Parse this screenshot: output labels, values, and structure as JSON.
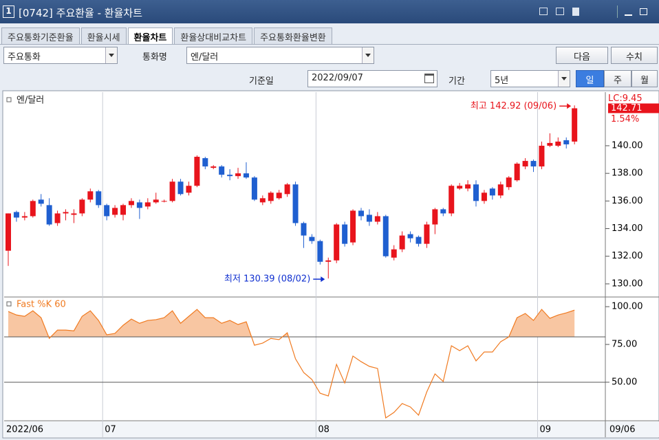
{
  "window": {
    "number": "1",
    "title": "[0742] 주요환율 - 환율차트"
  },
  "tabs": {
    "items": [
      "주요통화기준환율",
      "환율시세",
      "환율차트",
      "환율상대비교차트",
      "주요통화환율변환"
    ],
    "active": 2
  },
  "controls": {
    "currency_group": "주요통화",
    "currency_label": "통화명",
    "currency": "엔/달러",
    "next_button": "다음",
    "values_button": "수치",
    "date_label": "기준일",
    "date": "2022/09/07",
    "period_label": "기간",
    "period": "5년",
    "period_buttons": [
      "일",
      "주",
      "월"
    ],
    "period_active": 0
  },
  "chart_data": [
    {
      "type": "candlestick",
      "name": "엔/달러",
      "up_color": "#e8141c",
      "down_color": "#1f5fd0",
      "open": [
        132.4,
        135.2,
        134.8,
        134.9,
        136.1,
        135.7,
        134.4,
        135.1,
        135.0,
        135.1,
        136.1,
        136.7,
        135.7,
        135.0,
        135.0,
        135.7,
        135.9,
        135.6,
        135.9,
        136.0,
        136.0,
        137.4,
        136.6,
        137.1,
        139.1,
        138.4,
        138.5,
        137.9,
        137.8,
        138.0,
        137.7,
        135.9,
        136.0,
        136.2,
        136.5,
        137.2,
        134.4,
        133.4,
        133.1,
        131.6,
        131.7,
        134.3,
        133.0,
        135.3,
        135.0,
        134.5,
        134.9,
        131.9,
        132.5,
        133.6,
        133.4,
        132.9,
        134.3,
        135.4,
        135.1,
        136.9,
        136.9,
        137.2,
        136.0,
        136.9,
        136.4,
        137.0,
        137.5,
        138.5,
        138.9,
        138.5,
        140.0,
        140.0,
        140.4,
        140.3
      ],
      "high": [
        135.1,
        135.3,
        135.2,
        136.1,
        136.5,
        136.2,
        135.3,
        135.4,
        135.4,
        136.2,
        136.9,
        136.8,
        135.8,
        135.7,
        135.8,
        136.2,
        136.1,
        136.2,
        136.6,
        136.1,
        137.6,
        137.6,
        137.4,
        139.3,
        139.2,
        138.6,
        138.6,
        138.3,
        138.4,
        138.8,
        137.8,
        136.4,
        136.7,
        136.8,
        137.3,
        137.4,
        134.5,
        133.6,
        133.2,
        131.9,
        134.4,
        134.5,
        135.4,
        135.5,
        135.4,
        135.2,
        135.0,
        132.8,
        133.8,
        133.8,
        133.5,
        134.5,
        135.5,
        135.5,
        137.2,
        137.3,
        137.5,
        137.5,
        136.8,
        137.0,
        137.4,
        137.8,
        138.8,
        139.1,
        139.0,
        140.3,
        140.9,
        140.6,
        140.6,
        142.92
      ],
      "low": [
        131.3,
        134.5,
        134.6,
        134.8,
        135.6,
        134.2,
        134.2,
        134.6,
        134.4,
        134.9,
        135.9,
        135.5,
        134.6,
        134.8,
        134.6,
        135.5,
        134.7,
        135.4,
        135.8,
        135.9,
        135.9,
        136.4,
        136.4,
        137.0,
        138.3,
        138.3,
        137.7,
        137.5,
        137.6,
        137.6,
        136.0,
        135.7,
        135.8,
        136.1,
        136.3,
        134.2,
        132.6,
        132.9,
        131.4,
        130.39,
        131.5,
        132.7,
        132.8,
        134.6,
        134.2,
        134.3,
        131.9,
        131.7,
        132.3,
        133.0,
        132.7,
        132.6,
        133.6,
        134.9,
        134.9,
        136.8,
        136.7,
        135.6,
        135.8,
        136.1,
        136.2,
        136.8,
        137.4,
        138.3,
        138.1,
        138.3,
        139.9,
        139.9,
        139.8,
        140.1
      ],
      "close": [
        135.1,
        134.8,
        134.9,
        136.0,
        135.8,
        134.3,
        135.1,
        135.2,
        135.1,
        136.1,
        136.7,
        135.7,
        134.9,
        135.5,
        135.7,
        136.0,
        135.5,
        135.9,
        136.1,
        136.0,
        137.4,
        136.5,
        137.1,
        139.2,
        138.5,
        138.5,
        137.9,
        137.8,
        138.0,
        137.7,
        136.1,
        136.2,
        136.6,
        136.6,
        137.2,
        134.4,
        133.5,
        133.1,
        131.6,
        131.7,
        134.3,
        132.9,
        135.3,
        134.9,
        134.5,
        134.9,
        132.0,
        132.5,
        133.5,
        133.3,
        132.9,
        134.3,
        135.4,
        135.1,
        137.1,
        137.1,
        137.2,
        136.0,
        136.6,
        136.4,
        137.2,
        137.7,
        138.7,
        138.9,
        138.5,
        140.0,
        140.2,
        140.3,
        140.1,
        142.71
      ],
      "ylim": [
        129.05,
        143.88
      ],
      "yticks": [
        {
          "value": 130,
          "label": "130.00"
        },
        {
          "value": 132,
          "label": "132.00"
        },
        {
          "value": 134,
          "label": "134.00"
        },
        {
          "value": 136,
          "label": "136.00"
        },
        {
          "value": 138,
          "label": "138.00"
        },
        {
          "value": 140,
          "label": "140.00"
        }
      ],
      "xticks": [
        {
          "value": 0,
          "label": "2022/06"
        },
        {
          "value": 12,
          "label": "07"
        },
        {
          "value": 38,
          "label": "08"
        },
        {
          "value": 65,
          "label": "09"
        }
      ],
      "x_end_label": "09/06",
      "grid": true,
      "annotations": [
        {
          "text": "최고 142.92 (09/06)",
          "x": 69,
          "y": 142.92,
          "color": "#e8141c"
        },
        {
          "text": "최저 130.39 (08/02)",
          "x": 39,
          "y": 130.39,
          "color": "#1030d0"
        }
      ],
      "last_change_label": "LC:9.45",
      "last_value_label": "142.71",
      "change_pct_label": "1.54%"
    },
    {
      "type": "line",
      "name": "Fast %K 60",
      "color": "#f07a20",
      "fill_color": "#f8c6a2",
      "values": [
        96.8,
        94.5,
        93.6,
        97.3,
        92.7,
        79,
        84.5,
        84.5,
        84,
        93.6,
        97.3,
        90.9,
        81.4,
        82.3,
        87.7,
        91.8,
        89,
        90.9,
        91.4,
        92.7,
        97.3,
        89,
        93.6,
        98.2,
        92.7,
        92.7,
        89,
        90.9,
        88.2,
        90,
        74.5,
        75.9,
        79,
        78.2,
        82.7,
        65.5,
        56.4,
        51.8,
        42.7,
        40.9,
        61.8,
        49.5,
        67.3,
        63.6,
        60.5,
        59.1,
        26.4,
        30,
        35.9,
        33.6,
        28.2,
        43.6,
        55.5,
        50.5,
        74.1,
        70.9,
        74.1,
        64.1,
        70,
        70,
        76.8,
        80,
        92.7,
        95.5,
        90.9,
        98.2,
        92.3,
        94.5,
        95.9,
        97.7
      ],
      "ylim": [
        24.5,
        106.4
      ],
      "yticks": [
        {
          "value": 100,
          "label": "100.00"
        },
        {
          "value": 75,
          "label": "75.00"
        },
        {
          "value": 50,
          "label": "50.00"
        }
      ],
      "reference_lines": [
        80,
        50
      ]
    }
  ]
}
